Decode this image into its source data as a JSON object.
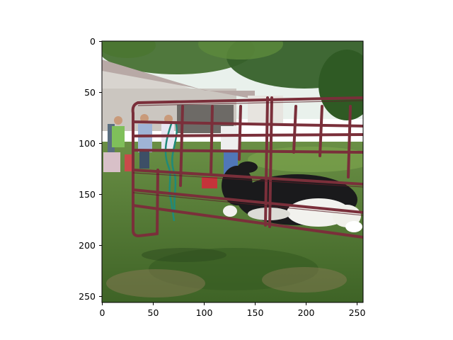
{
  "figure": {
    "image_description_icon": "photo-cow-behind-metal-gate",
    "axes": {
      "x_ticks": [
        "0",
        "50",
        "100",
        "150",
        "200",
        "250"
      ],
      "y_ticks": [
        "0",
        "50",
        "100",
        "150",
        "200",
        "250"
      ],
      "x_range": [
        0,
        256
      ],
      "y_range": [
        256,
        0
      ]
    }
  },
  "colors": {
    "sky": "#e9f1ec",
    "foliage": "#3f6a2a",
    "grass": "#4d7a31",
    "fence": "#7a2f3a",
    "barn": "#d8d4cf",
    "cow_black": "#1a1a1c",
    "cow_white": "#f2f2ee",
    "rope": "#1f8a7a"
  }
}
